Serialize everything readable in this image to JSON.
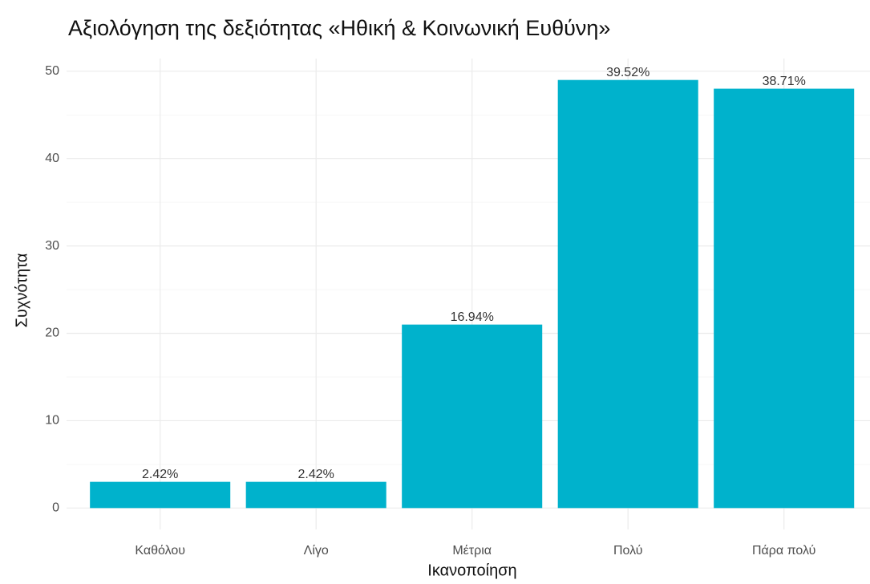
{
  "chart_data": {
    "type": "bar",
    "title": "Αξιολόγηση της δεξιότητας «Ηθική & Κοινωνική Ευθύνη»",
    "x_label": "Ικανοποίηση",
    "y_label": "Συχνότητα",
    "categories": [
      "Καθόλου",
      "Λίγο",
      "Μέτρια",
      "Πολύ",
      "Πάρα πολύ"
    ],
    "values": [
      3,
      3,
      21,
      49,
      48
    ],
    "annotations": [
      "2.42%",
      "2.42%",
      "16.94%",
      "39.52%",
      "38.71%"
    ],
    "color": "#00b2cc",
    "ylim": [
      -2.45,
      51.45
    ],
    "yticks": [
      0,
      10,
      20,
      30,
      40,
      50
    ],
    "grid": true
  }
}
